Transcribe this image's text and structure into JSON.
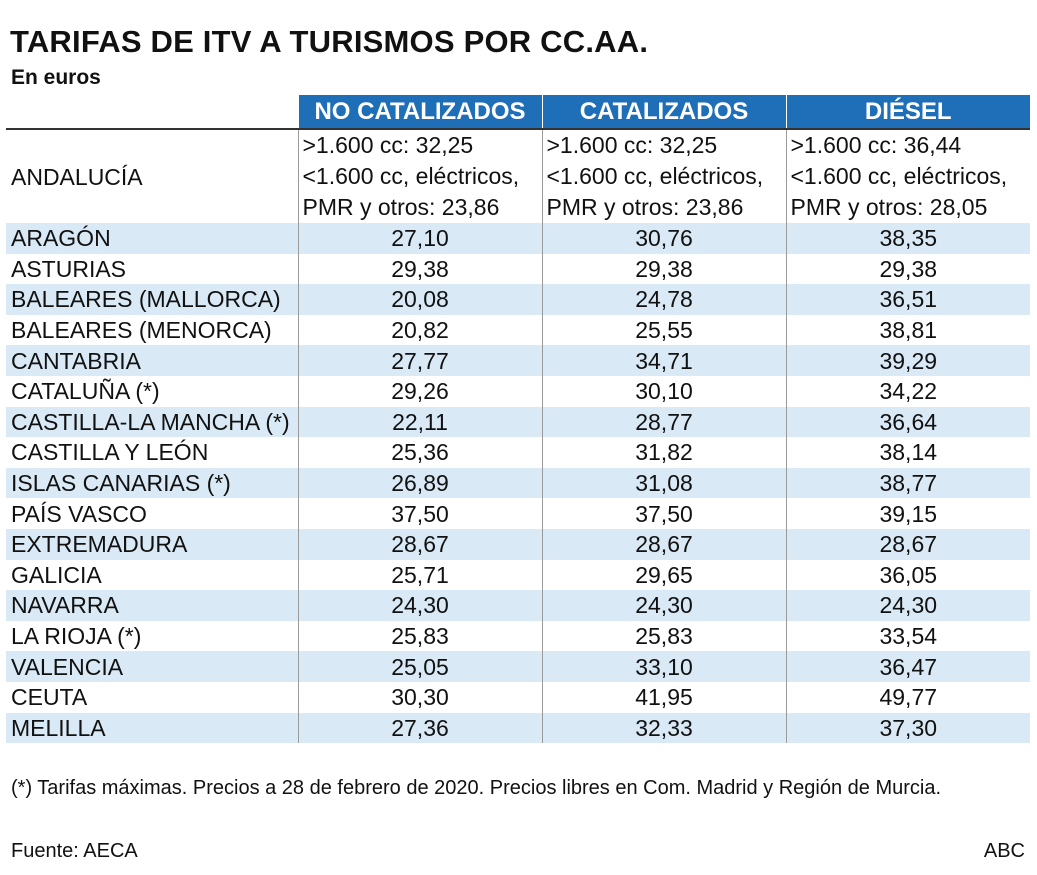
{
  "title": "TARIFAS DE ITV A TURISMOS POR CC.AA.",
  "subtitle": "En euros",
  "chart_data": {
    "type": "table",
    "columns": [
      "NO CATALIZADOS",
      "CATALIZADOS",
      "DIÉSEL"
    ],
    "andalucia": {
      "region": "ANDALUCÍA",
      "no_catalizados": [
        ">1.600 cc: 32,25",
        "<1.600 cc, eléctricos,",
        "PMR y otros: 23,86"
      ],
      "catalizados": [
        ">1.600 cc: 32,25",
        "<1.600 cc, eléctricos,",
        "PMR y otros: 23,86"
      ],
      "diesel": [
        ">1.600 cc: 36,44",
        "<1.600 cc, eléctricos,",
        "PMR y otros: 28,05"
      ]
    },
    "rows": [
      {
        "region": "ARAGÓN",
        "values": [
          "27,10",
          "30,76",
          "38,35"
        ]
      },
      {
        "region": "ASTURIAS",
        "values": [
          "29,38",
          "29,38",
          "29,38"
        ]
      },
      {
        "region": "BALEARES (MALLORCA)",
        "values": [
          "20,08",
          "24,78",
          "36,51"
        ]
      },
      {
        "region": "BALEARES (MENORCA)",
        "values": [
          "20,82",
          "25,55",
          "38,81"
        ]
      },
      {
        "region": "CANTABRIA",
        "values": [
          "27,77",
          "34,71",
          "39,29"
        ]
      },
      {
        "region": "CATALUÑA (*)",
        "values": [
          "29,26",
          "30,10",
          "34,22"
        ]
      },
      {
        "region": "CASTILLA-LA MANCHA (*)",
        "values": [
          "22,11",
          "28,77",
          "36,64"
        ]
      },
      {
        "region": "CASTILLA Y LEÓN",
        "values": [
          "25,36",
          "31,82",
          "38,14"
        ]
      },
      {
        "region": "ISLAS CANARIAS (*)",
        "values": [
          "26,89",
          "31,08",
          "38,77"
        ]
      },
      {
        "region": "PAÍS VASCO",
        "values": [
          "37,50",
          "37,50",
          "39,15"
        ]
      },
      {
        "region": "EXTREMADURA",
        "values": [
          "28,67",
          "28,67",
          "28,67"
        ]
      },
      {
        "region": "GALICIA",
        "values": [
          "25,71",
          "29,65",
          "36,05"
        ]
      },
      {
        "region": "NAVARRA",
        "values": [
          "24,30",
          "24,30",
          "24,30"
        ]
      },
      {
        "region": "LA RIOJA (*)",
        "values": [
          "25,83",
          "25,83",
          "33,54"
        ]
      },
      {
        "region": "VALENCIA",
        "values": [
          "25,05",
          "33,10",
          "36,47"
        ]
      },
      {
        "region": "CEUTA",
        "values": [
          "30,30",
          "41,95",
          "49,77"
        ]
      },
      {
        "region": "MELILLA",
        "values": [
          "27,36",
          "32,33",
          "37,30"
        ]
      }
    ]
  },
  "note": "(*) Tarifas máximas. Precios a 28 de febrero de 2020. Precios libres en Com. Madrid y Región de Murcia.",
  "source": "Fuente: AECA",
  "brand": "ABC",
  "colors": {
    "header_bg": "#1f6fb8",
    "header_text": "#ffffff",
    "row_shade": "#d9e9f5"
  }
}
